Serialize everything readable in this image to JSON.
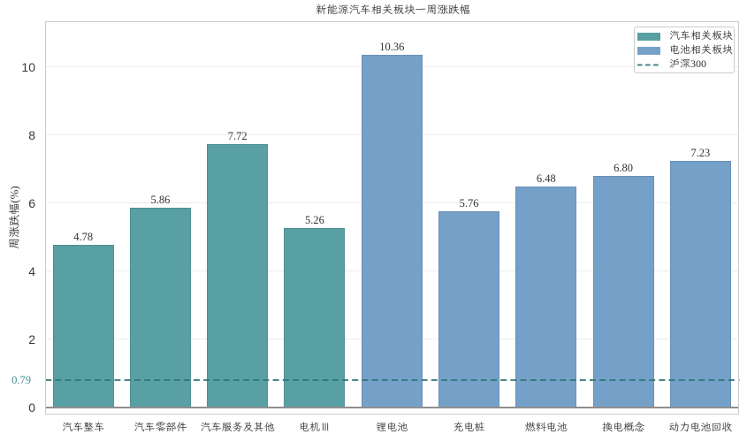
{
  "page": {
    "background": "#ffffff"
  },
  "chart_data": {
    "type": "bar",
    "title": "新能源汽车相关板块一周涨跌幅",
    "ylabel": "周涨跌幅(%)",
    "xlabel": "",
    "categories": [
      "汽车整车",
      "汽车零部件",
      "汽车服务及其他",
      "电机Ⅲ",
      "锂电池",
      "充电桩",
      "燃料电池",
      "换电概念",
      "动力电池回收"
    ],
    "values": [
      4.78,
      5.86,
      7.72,
      5.26,
      10.36,
      5.76,
      6.48,
      6.8,
      7.23
    ],
    "value_labels": [
      "4.78",
      "5.86",
      "7.72",
      "5.26",
      "10.36",
      "5.76",
      "6.48",
      "6.80",
      "7.23"
    ],
    "series": [
      {
        "name": "汽车相关板块",
        "color": "#58a0a4",
        "category_indices": [
          0,
          1,
          2,
          3
        ]
      },
      {
        "name": "电池相关板块",
        "color": "#75a1c9",
        "category_indices": [
          4,
          5,
          6,
          7,
          8
        ]
      }
    ],
    "reference_line": {
      "name": "沪深300",
      "value": 0.79,
      "label": "0.79",
      "color": "#2f7477",
      "style": "dashed",
      "label_color": "#458f96"
    },
    "yticks": [
      "0",
      "2",
      "4",
      "6",
      "8",
      "10"
    ],
    "ytick_values": [
      0,
      2,
      4,
      6,
      8,
      10
    ],
    "ylim": [
      -0.2,
      11.35
    ],
    "grid": "horizontal",
    "legend": {
      "position": "upper-right",
      "entries": [
        {
          "label": "汽车相关板块",
          "swatch": "rect",
          "color": "#58a0a4"
        },
        {
          "label": "电池相关板块",
          "swatch": "rect",
          "color": "#75a1c9"
        },
        {
          "label": "沪深300",
          "swatch": "dashed-line",
          "color": "#2f7477"
        }
      ]
    }
  }
}
